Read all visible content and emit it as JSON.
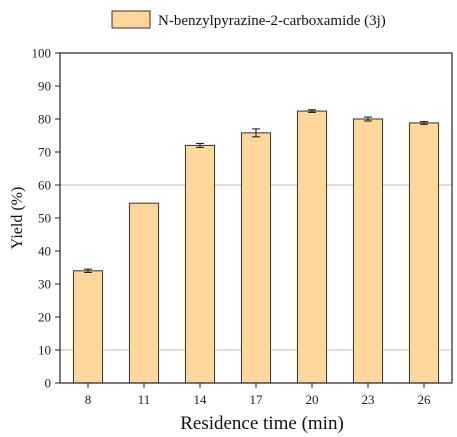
{
  "chart_data": {
    "type": "bar",
    "categories": [
      "8",
      "11",
      "14",
      "17",
      "20",
      "23",
      "26"
    ],
    "series": [
      {
        "name": "N-benzylpyrazine-2-carboxamide (3j)",
        "values": [
          34,
          54.5,
          72,
          75.8,
          82.4,
          80,
          78.8
        ],
        "errors": [
          0.5,
          0,
          0.6,
          1.2,
          0.4,
          0.6,
          0.4
        ],
        "color": "#FFD69B",
        "edge_color": "#333333"
      }
    ],
    "xlabel": "Residence time (min)",
    "ylabel": "Yield (%)",
    "ylim": [
      0,
      100
    ],
    "yticks": [
      0,
      10,
      20,
      30,
      40,
      50,
      60,
      70,
      80,
      90,
      100
    ],
    "grid_lines_at": [
      10,
      60
    ],
    "grid_color": "#BBBBBB",
    "legend_placement": "top-center"
  }
}
